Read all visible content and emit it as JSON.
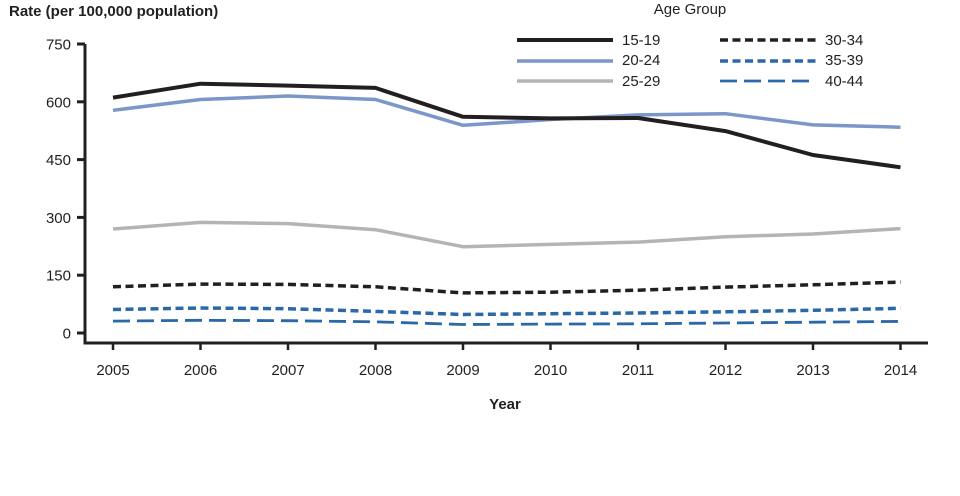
{
  "chart_data": {
    "type": "line",
    "ylabel": "Rate (per 100,000 population)",
    "xlabel": "Year",
    "legend_title": "Age Group",
    "legend_position": "top-center",
    "grid": false,
    "x": [
      2005,
      2006,
      2007,
      2008,
      2009,
      2010,
      2011,
      2012,
      2013,
      2014
    ],
    "ylim": [
      0,
      750
    ],
    "yticks": [
      0,
      150,
      300,
      450,
      600,
      750
    ],
    "axis_color": "#231f20",
    "series": [
      {
        "name": "15-19",
        "color": "#231f20",
        "dash": "solid",
        "width": 4,
        "values": [
          611,
          647,
          642,
          636,
          561,
          557,
          558,
          524,
          462,
          430
        ]
      },
      {
        "name": "20-24",
        "color": "#7b96c8",
        "dash": "solid",
        "width": 3.5,
        "values": [
          578,
          606,
          615,
          606,
          539,
          554,
          566,
          569,
          540,
          534
        ]
      },
      {
        "name": "25-29",
        "color": "#b3b4b6",
        "dash": "solid",
        "width": 3.5,
        "values": [
          270,
          287,
          284,
          268,
          224,
          230,
          236,
          250,
          257,
          271
        ]
      },
      {
        "name": "30-34",
        "color": "#231f20",
        "dash": "short",
        "width": 3.5,
        "values": [
          120,
          127,
          126,
          120,
          104,
          106,
          111,
          119,
          125,
          132
        ]
      },
      {
        "name": "35-39",
        "color": "#2a68a8",
        "dash": "short",
        "width": 3.5,
        "values": [
          61,
          65,
          63,
          56,
          48,
          50,
          52,
          55,
          59,
          64
        ]
      },
      {
        "name": "40-44",
        "color": "#2a68a8",
        "dash": "long",
        "width": 2.8,
        "values": [
          31,
          33,
          32,
          29,
          22,
          23,
          24,
          26,
          28,
          30
        ]
      }
    ]
  }
}
